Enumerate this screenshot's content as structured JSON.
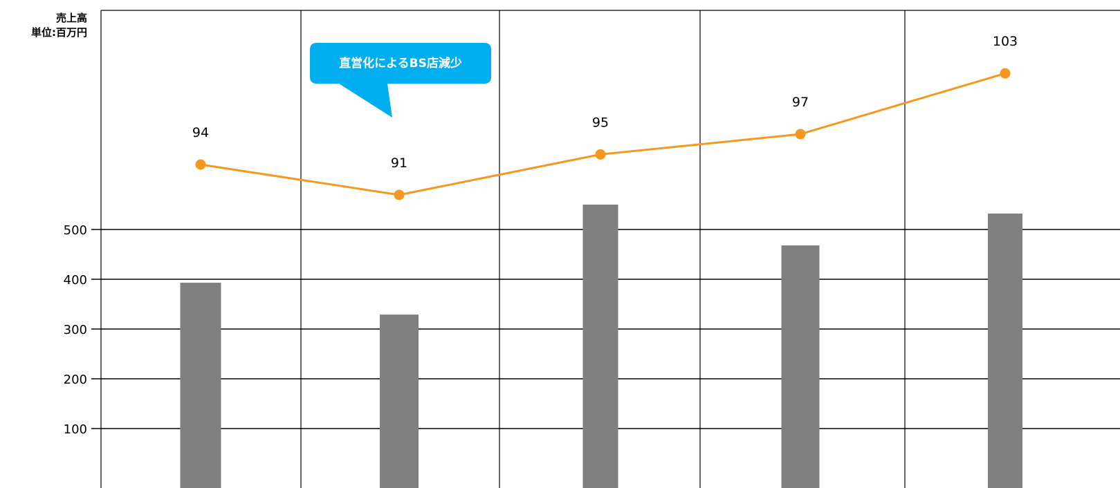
{
  "chart_data": {
    "type": "bar",
    "ylabel_lines": [
      "売上高",
      "単位:百万円"
    ],
    "yticks": [
      100,
      200,
      300,
      400,
      500
    ],
    "ylim": [
      0,
      500
    ],
    "grid": true,
    "bars": {
      "color": "#808080",
      "values": [
        393,
        329,
        550,
        468,
        532
      ]
    },
    "line": {
      "color": "#F7971E",
      "values": [
        94,
        91,
        95,
        97,
        103
      ],
      "labels": [
        "94",
        "91",
        "95",
        "97",
        "103"
      ]
    },
    "callout": {
      "text": "直営化によるBS店減少",
      "color": "#00AEEF"
    }
  }
}
